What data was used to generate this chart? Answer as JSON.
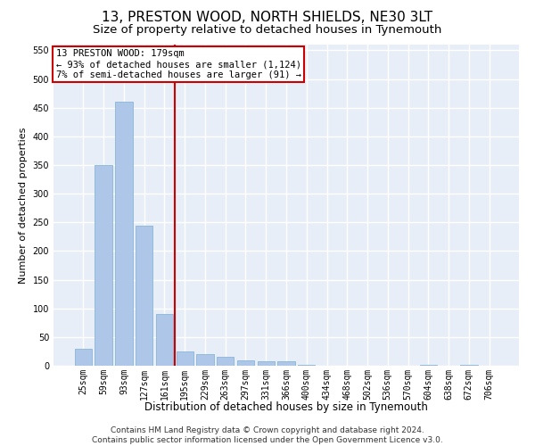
{
  "title": "13, PRESTON WOOD, NORTH SHIELDS, NE30 3LT",
  "subtitle": "Size of property relative to detached houses in Tynemouth",
  "xlabel": "Distribution of detached houses by size in Tynemouth",
  "ylabel": "Number of detached properties",
  "footer_line1": "Contains HM Land Registry data © Crown copyright and database right 2024.",
  "footer_line2": "Contains public sector information licensed under the Open Government Licence v3.0.",
  "bar_labels": [
    "25sqm",
    "59sqm",
    "93sqm",
    "127sqm",
    "161sqm",
    "195sqm",
    "229sqm",
    "263sqm",
    "297sqm",
    "331sqm",
    "366sqm",
    "400sqm",
    "434sqm",
    "468sqm",
    "502sqm",
    "536sqm",
    "570sqm",
    "604sqm",
    "638sqm",
    "672sqm",
    "706sqm"
  ],
  "bar_values": [
    30,
    350,
    460,
    245,
    90,
    25,
    20,
    15,
    10,
    8,
    8,
    1,
    0,
    0,
    0,
    0,
    0,
    1,
    0,
    1,
    0
  ],
  "bar_color": "#aec6e8",
  "bar_edge_color": "#7aaed4",
  "vline_x_index": 4.5,
  "vline_color": "#cc0000",
  "annotation_line1": "13 PRESTON WOOD: 179sqm",
  "annotation_line2": "← 93% of detached houses are smaller (1,124)",
  "annotation_line3": "7% of semi-detached houses are larger (91) →",
  "annotation_box_color": "#cc0000",
  "ylim": [
    0,
    560
  ],
  "yticks": [
    0,
    50,
    100,
    150,
    200,
    250,
    300,
    350,
    400,
    450,
    500,
    550
  ],
  "background_color": "#e8eef7",
  "grid_color": "#ffffff",
  "title_fontsize": 11,
  "subtitle_fontsize": 9.5,
  "ylabel_fontsize": 8,
  "xlabel_fontsize": 8.5,
  "tick_fontsize": 7,
  "annotation_fontsize": 7.5,
  "footer_fontsize": 6.5
}
